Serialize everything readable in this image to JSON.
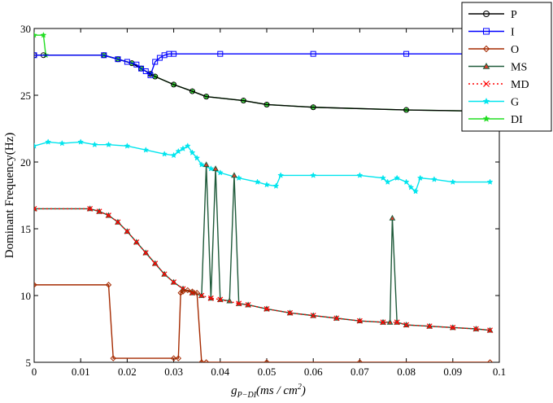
{
  "chart_data": {
    "type": "line",
    "title": "",
    "xlabel": "g",
    "xlabel_sub": "P−DI",
    "xlabel_units": "(ms / cm",
    "xlabel_sup": "2",
    "xlabel_close": ")",
    "ylabel": "Dominant Frequency(Hz)",
    "xlim": [
      0,
      0.1
    ],
    "ylim": [
      5,
      30
    ],
    "xticks": [
      0,
      0.01,
      0.02,
      0.03,
      0.04,
      0.05,
      0.06,
      0.07,
      0.08,
      0.09,
      0.1
    ],
    "xtick_labels": [
      "0",
      "0.01",
      "0.02",
      "0.03",
      "0.04",
      "0.05",
      "0.06",
      "0.07",
      "0.08",
      "0.09",
      "0.1"
    ],
    "yticks": [
      5,
      10,
      15,
      20,
      25,
      30
    ],
    "ytick_labels": [
      "5",
      "10",
      "15",
      "20",
      "25",
      "30"
    ],
    "grid": false,
    "legend_position": "top-right",
    "series": [
      {
        "name": "P",
        "color": "#000000",
        "marker": "circle",
        "x": [
          0,
          0.002,
          0.015,
          0.018,
          0.021,
          0.023,
          0.025,
          0.026,
          0.03,
          0.034,
          0.037,
          0.045,
          0.05,
          0.06,
          0.08,
          0.098
        ],
        "y": [
          28.0,
          28.0,
          28.0,
          27.7,
          27.4,
          27.0,
          26.6,
          26.4,
          25.8,
          25.3,
          24.9,
          24.6,
          24.3,
          24.1,
          23.9,
          23.8
        ]
      },
      {
        "name": "I",
        "color": "#0000ff",
        "marker": "square",
        "x": [
          0,
          0.015,
          0.018,
          0.02,
          0.022,
          0.023,
          0.024,
          0.025,
          0.026,
          0.027,
          0.028,
          0.029,
          0.03,
          0.04,
          0.06,
          0.08,
          0.098
        ],
        "y": [
          28.0,
          28.0,
          27.7,
          27.5,
          27.3,
          27.0,
          26.8,
          26.5,
          27.5,
          27.8,
          28.0,
          28.1,
          28.1,
          28.1,
          28.1,
          28.1,
          28.1
        ]
      },
      {
        "name": "O",
        "color": "#a52a00",
        "marker": "diamond",
        "x": [
          0,
          0.016,
          0.017,
          0.03,
          0.031,
          0.0315,
          0.032,
          0.033,
          0.034,
          0.035,
          0.036,
          0.037,
          0.05,
          0.07,
          0.098
        ],
        "y": [
          10.8,
          10.8,
          5.3,
          5.3,
          5.3,
          10.2,
          10.3,
          10.4,
          10.3,
          10.2,
          5.0,
          5.0,
          5.0,
          5.0,
          5.0
        ]
      },
      {
        "name": "MS",
        "color": "#1f5a3a",
        "marker": "triangle",
        "x": [
          0,
          0.012,
          0.014,
          0.016,
          0.018,
          0.02,
          0.022,
          0.024,
          0.026,
          0.028,
          0.03,
          0.032,
          0.034,
          0.036,
          0.037,
          0.038,
          0.039,
          0.04,
          0.042,
          0.043,
          0.044,
          0.046,
          0.05,
          0.055,
          0.06,
          0.065,
          0.07,
          0.075,
          0.0765,
          0.077,
          0.078,
          0.08,
          0.085,
          0.09,
          0.095,
          0.098
        ],
        "y": [
          16.5,
          16.5,
          16.3,
          16.0,
          15.5,
          14.8,
          14.0,
          13.2,
          12.4,
          11.6,
          11.0,
          10.5,
          10.2,
          10.0,
          19.8,
          9.8,
          19.5,
          9.7,
          9.6,
          19.0,
          9.4,
          9.3,
          9.0,
          8.7,
          8.5,
          8.3,
          8.1,
          8.0,
          8.0,
          15.8,
          8.0,
          7.8,
          7.7,
          7.6,
          7.5,
          7.4
        ]
      },
      {
        "name": "MD",
        "color": "#ff0000",
        "marker": "x",
        "dashed": true,
        "x": [
          0,
          0.012,
          0.014,
          0.016,
          0.018,
          0.02,
          0.022,
          0.024,
          0.026,
          0.028,
          0.03,
          0.032,
          0.034,
          0.036,
          0.038,
          0.04,
          0.044,
          0.046,
          0.05,
          0.055,
          0.06,
          0.065,
          0.07,
          0.075,
          0.078,
          0.08,
          0.085,
          0.09,
          0.095,
          0.098
        ],
        "y": [
          16.5,
          16.5,
          16.3,
          16.0,
          15.5,
          14.8,
          14.0,
          13.2,
          12.4,
          11.6,
          11.0,
          10.5,
          10.2,
          10.0,
          9.8,
          9.7,
          9.4,
          9.3,
          9.0,
          8.7,
          8.5,
          8.3,
          8.1,
          8.0,
          8.0,
          7.8,
          7.7,
          7.6,
          7.5,
          7.4
        ]
      },
      {
        "name": "G",
        "color": "#00e5ee",
        "marker": "star",
        "x": [
          0,
          0.003,
          0.006,
          0.01,
          0.013,
          0.016,
          0.02,
          0.024,
          0.028,
          0.03,
          0.031,
          0.032,
          0.033,
          0.034,
          0.035,
          0.036,
          0.038,
          0.04,
          0.044,
          0.048,
          0.05,
          0.052,
          0.053,
          0.06,
          0.07,
          0.075,
          0.076,
          0.078,
          0.08,
          0.081,
          0.082,
          0.083,
          0.086,
          0.09,
          0.098
        ],
        "y": [
          21.2,
          21.5,
          21.4,
          21.5,
          21.3,
          21.3,
          21.2,
          20.9,
          20.6,
          20.5,
          20.8,
          21.0,
          21.2,
          20.7,
          20.3,
          19.8,
          19.5,
          19.2,
          18.8,
          18.5,
          18.3,
          18.2,
          19.0,
          19.0,
          19.0,
          18.8,
          18.5,
          18.8,
          18.5,
          18.1,
          17.8,
          18.8,
          18.7,
          18.5,
          18.5
        ]
      },
      {
        "name": "DI",
        "color": "#22dd22",
        "marker": "star",
        "x": [
          0,
          0.002,
          0.0025,
          0.015,
          0.018,
          0.021,
          0.023,
          0.025,
          0.026,
          0.03,
          0.034,
          0.037,
          0.045,
          0.05,
          0.06,
          0.08,
          0.098
        ],
        "y": [
          29.5,
          29.5,
          28.0,
          28.0,
          27.7,
          27.4,
          27.0,
          26.6,
          26.4,
          25.8,
          25.3,
          24.9,
          24.6,
          24.3,
          24.1,
          23.9,
          23.8
        ]
      }
    ]
  }
}
